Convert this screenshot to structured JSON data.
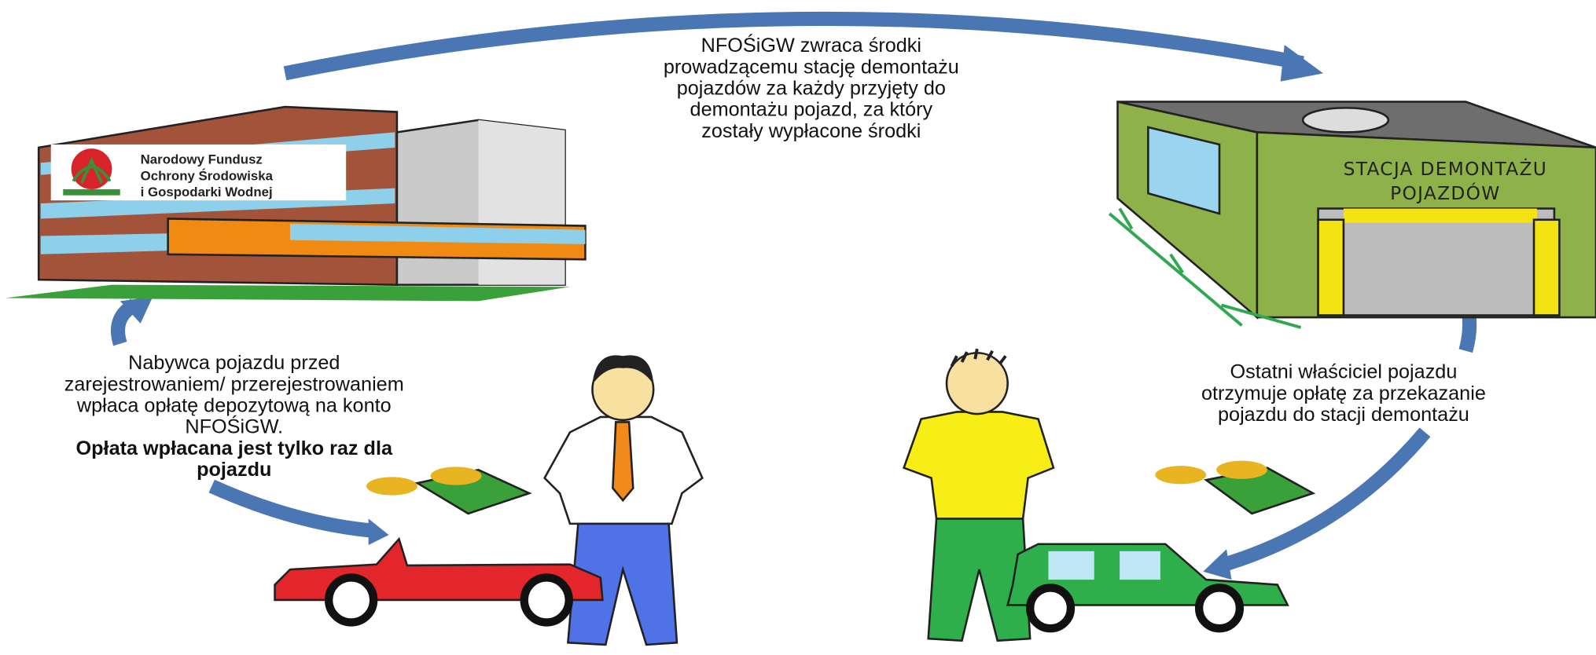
{
  "top_note": {
    "lines": [
      "NFOŚiGW zwraca środki",
      "prowadzącemu stację demontażu",
      "pojazdów za każdy przyjęty do",
      "demontażu pojazd, za który",
      "zostały wypłacone środki"
    ]
  },
  "fund_sign": {
    "lines": [
      "Narodowy Fundusz",
      "Ochrony Środowiska",
      "i Gospodarki Wodnej"
    ]
  },
  "station_sign": {
    "lines": [
      "STACJA DEMONTAŻU",
      "POJAZDÓW"
    ]
  },
  "buyer_note": {
    "lines": [
      "Nabywca pojazdu przed",
      "zarejestrowaniem/ przerejestrowaniem",
      "wpłaca opłatę depozytową na konto",
      "NFOŚiGW."
    ],
    "bold_lines": [
      "Opłata wpłacana jest tylko raz dla",
      "pojazdu"
    ]
  },
  "owner_note": {
    "lines": [
      "Ostatni właściciel pojazdu",
      "otrzymuje opłatę za przekazanie",
      "pojazdu do stacji demontażu"
    ]
  }
}
